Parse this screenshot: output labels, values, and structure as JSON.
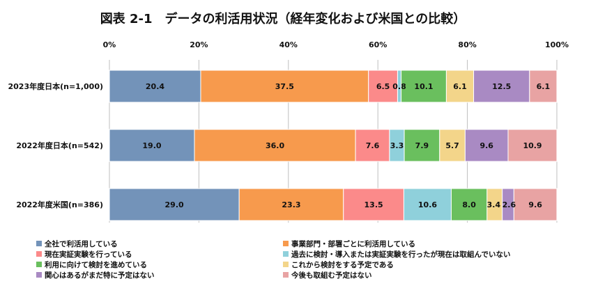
{
  "chart_data": {
    "type": "bar",
    "orientation": "horizontal",
    "stacked": true,
    "title": "図表 2-1　データの利活用状況（経年変化および米国との比較）",
    "xlim": [
      0,
      100
    ],
    "x_ticks": [
      "0%",
      "20%",
      "40%",
      "60%",
      "80%",
      "100%"
    ],
    "grid": true,
    "legend_position": "bottom",
    "categories": [
      "2023年度日本(n=1,000)",
      "2022年度日本(n=542)",
      "2022年度米国(n=386)"
    ],
    "series": [
      {
        "name": "全社で利活用している",
        "color": "#7393b9",
        "values": [
          20.4,
          19.0,
          29.0
        ]
      },
      {
        "name": "事業部門・部署ごとに利活用している",
        "color": "#f79a4d",
        "values": [
          37.5,
          36.0,
          23.3
        ]
      },
      {
        "name": "現在実証実験を行っている",
        "color": "#fb8a8a",
        "values": [
          6.5,
          7.6,
          13.5
        ]
      },
      {
        "name": "過去に検討・導入または実証実験を行ったが現在は取組んでいない",
        "color": "#8fd0db",
        "values": [
          0.8,
          3.3,
          10.6
        ]
      },
      {
        "name": "利用に向けて検討を進めている",
        "color": "#6abf5e",
        "values": [
          10.1,
          7.9,
          8.0
        ]
      },
      {
        "name": "これから検討をする予定である",
        "color": "#f3d58a",
        "values": [
          6.1,
          5.7,
          3.4
        ]
      },
      {
        "name": "関心はあるがまだ特に予定はない",
        "color": "#a98ac3",
        "values": [
          12.5,
          9.6,
          2.6
        ]
      },
      {
        "name": "今後も取組む予定はない",
        "color": "#e8a3a3",
        "values": [
          6.1,
          10.9,
          9.6
        ]
      }
    ]
  }
}
